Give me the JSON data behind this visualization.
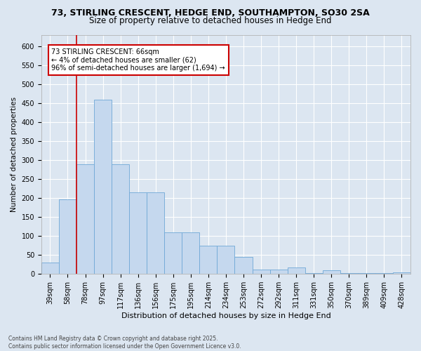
{
  "title": "73, STIRLING CRESCENT, HEDGE END, SOUTHAMPTON, SO30 2SA",
  "subtitle": "Size of property relative to detached houses in Hedge End",
  "xlabel": "Distribution of detached houses by size in Hedge End",
  "ylabel": "Number of detached properties",
  "categories": [
    "39sqm",
    "58sqm",
    "78sqm",
    "97sqm",
    "117sqm",
    "136sqm",
    "156sqm",
    "175sqm",
    "195sqm",
    "214sqm",
    "234sqm",
    "253sqm",
    "272sqm",
    "292sqm",
    "311sqm",
    "331sqm",
    "350sqm",
    "370sqm",
    "389sqm",
    "409sqm",
    "428sqm"
  ],
  "values": [
    30,
    197,
    290,
    460,
    290,
    215,
    215,
    110,
    110,
    75,
    75,
    45,
    12,
    12,
    18,
    3,
    9,
    3,
    3,
    3,
    5
  ],
  "bar_color": "#c5d8ee",
  "bar_edge_color": "#6fa8d6",
  "annotation_text_line1": "73 STIRLING CRESCENT: 66sqm",
  "annotation_text_line2": "← 4% of detached houses are smaller (62)",
  "annotation_text_line3": "96% of semi-detached houses are larger (1,694) →",
  "annotation_box_facecolor": "#ffffff",
  "annotation_border_color": "#cc0000",
  "vline_color": "#cc0000",
  "vline_x": 1.5,
  "ylim": [
    0,
    630
  ],
  "yticks": [
    0,
    50,
    100,
    150,
    200,
    250,
    300,
    350,
    400,
    450,
    500,
    550,
    600
  ],
  "footer_line1": "Contains HM Land Registry data © Crown copyright and database right 2025.",
  "footer_line2": "Contains public sector information licensed under the Open Government Licence v3.0.",
  "bg_color": "#dce6f1",
  "plot_bg_color": "#dce6f1",
  "grid_color": "#ffffff",
  "title_fontsize": 9,
  "subtitle_fontsize": 8.5,
  "xlabel_fontsize": 8,
  "ylabel_fontsize": 7.5,
  "tick_fontsize": 7,
  "annotation_fontsize": 7,
  "footer_fontsize": 5.5
}
